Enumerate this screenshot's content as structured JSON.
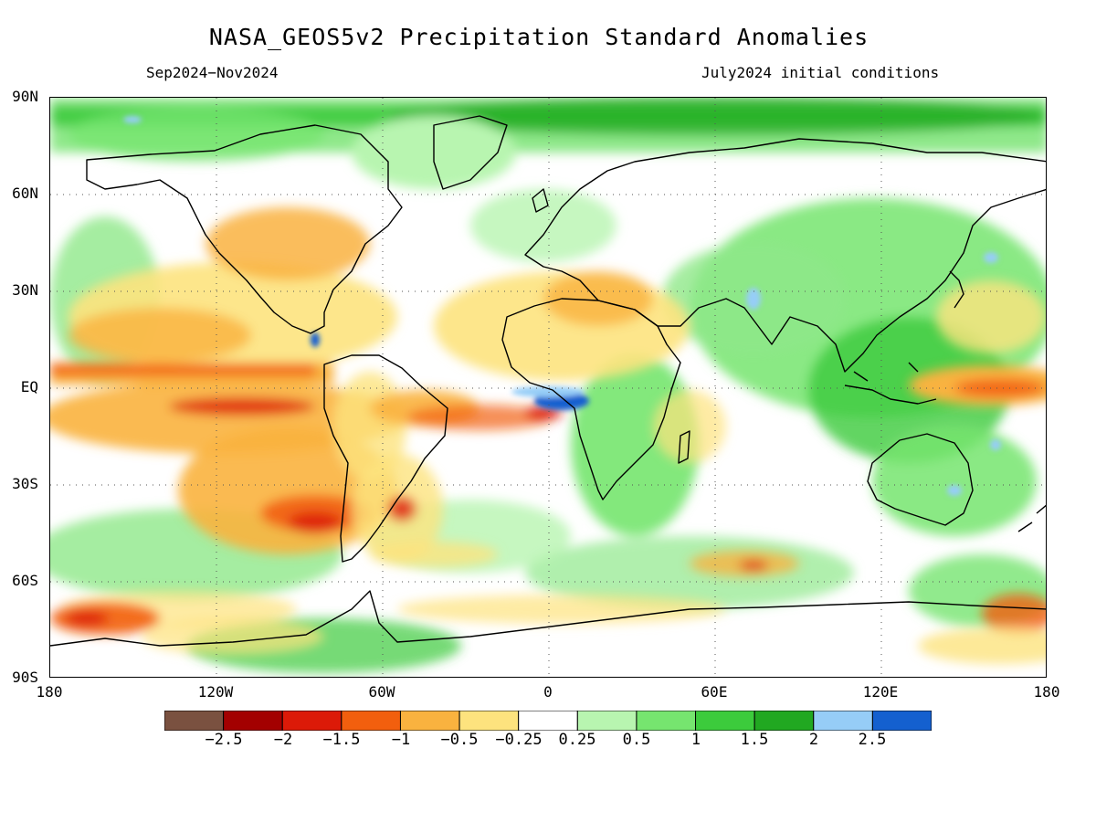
{
  "header": {
    "title": "NASA_GEOS5v2 Precipitation Standard Anomalies",
    "period": "Sep2024−Nov2024",
    "init": "July2024 initial conditions"
  },
  "axes": {
    "lat_labels": [
      "90N",
      "60N",
      "30N",
      "EQ",
      "30S",
      "60S",
      "90S"
    ],
    "lon_labels": [
      "180",
      "120W",
      "60W",
      "0",
      "60E",
      "120E",
      "180"
    ]
  },
  "legend": {
    "colors": [
      "#7a5140",
      "#a30000",
      "#dc1a08",
      "#f25f0e",
      "#f9b23f",
      "#fde37e",
      "#ffffff",
      "#b8f5b0",
      "#76e56f",
      "#3ccb3c",
      "#21a821",
      "#96cdf7",
      "#1460cf"
    ],
    "labels": [
      "−2.5",
      "−2",
      "−1.5",
      "−1",
      "−0.5",
      "−0.25",
      "0.25",
      "0.5",
      "1",
      "1.5",
      "2",
      "2.5"
    ]
  },
  "map": {
    "projection": "cylindrical equidistant",
    "lon_range": [
      -180,
      180
    ],
    "lat_range": [
      -90,
      90
    ],
    "gridlines": "dotted every 30 degrees",
    "land_fill": "#ffffff",
    "ocean_base": "#ffffff"
  }
}
